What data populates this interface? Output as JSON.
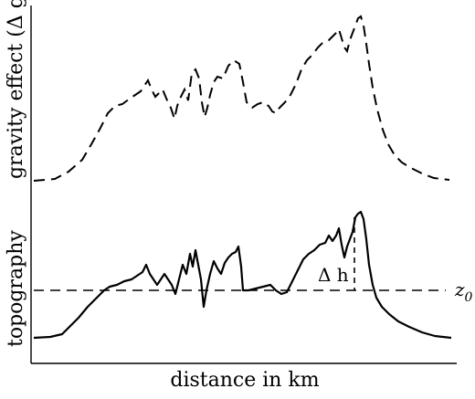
{
  "axes": {
    "x_label": "distance in km",
    "y_label_top": "gravity effect (Δ g)",
    "y_label_bottom": "topography"
  },
  "annotations": {
    "delta_h": "Δ h",
    "z0_main": "z",
    "z0_sub": "0"
  },
  "style": {
    "gravity_line": "dashed",
    "topography_line": "solid",
    "reference_line": "dashed",
    "color": "#000000"
  }
}
